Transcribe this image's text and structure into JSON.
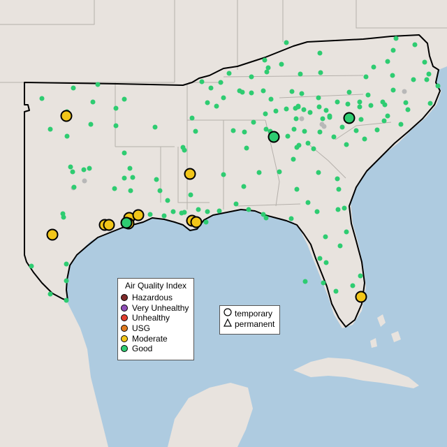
{
  "legend": {
    "title": "Air Quality Index",
    "categories": [
      {
        "label": "Hazardous",
        "color": "#7e2a2a"
      },
      {
        "label": "Very Unhealthy",
        "color": "#8f4fb7"
      },
      {
        "label": "Unhealthy",
        "color": "#e23f2e"
      },
      {
        "label": "USG",
        "color": "#e07b1f"
      },
      {
        "label": "Moderate",
        "color": "#f2c619"
      },
      {
        "label": "Good",
        "color": "#2ecc71"
      }
    ]
  },
  "type_legend": {
    "temporary": "temporary",
    "permanent": "permanent"
  },
  "markers": {
    "large": [
      {
        "aqi": "Moderate"
      },
      {
        "aqi": "Moderate"
      },
      {
        "aqi": "Moderate"
      },
      {
        "aqi": "Moderate"
      },
      {
        "aqi": "Moderate"
      },
      {
        "aqi": "Moderate"
      },
      {
        "aqi": "Moderate"
      },
      {
        "aqi": "Moderate"
      },
      {
        "aqi": "Moderate"
      },
      {
        "aqi": "Moderate"
      },
      {
        "aqi": "Moderate"
      },
      {
        "aqi": "Good"
      },
      {
        "aqi": "Good"
      },
      {
        "aqi": "Good"
      }
    ],
    "small_color": "#2ecc71",
    "inactive_color": "#b8b8b8"
  }
}
